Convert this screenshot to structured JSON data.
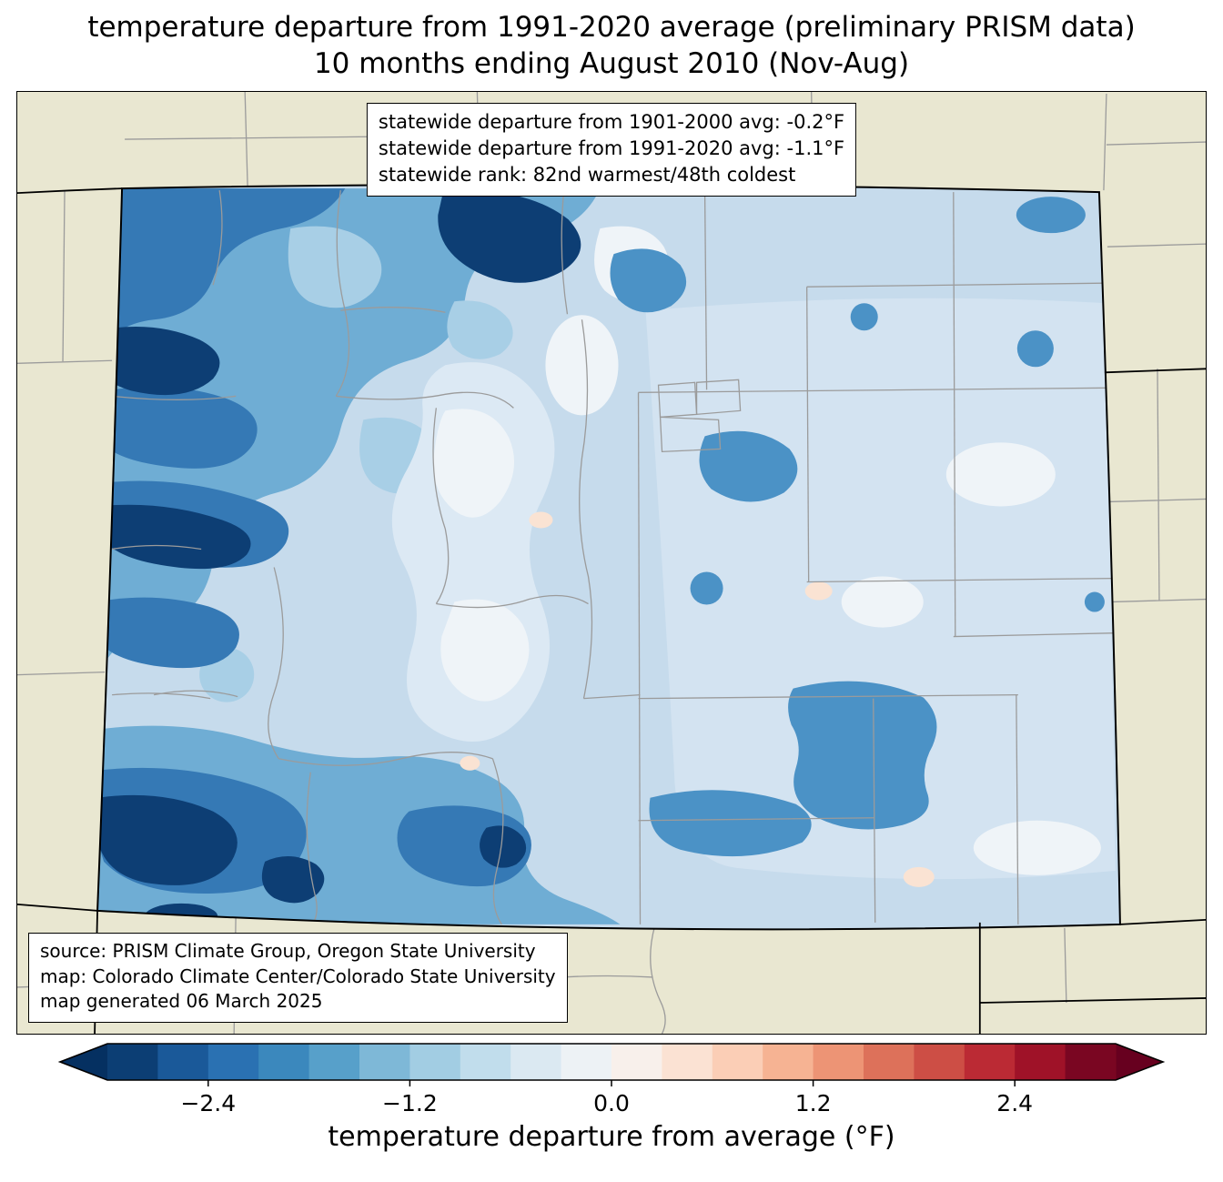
{
  "title": {
    "line1": "temperature departure from 1991-2020 average (preliminary PRISM data)",
    "line2": "10 months ending August 2010 (Nov-Aug)"
  },
  "stats_box": {
    "line1": "statewide departure from 1901-2000 avg: -0.2°F",
    "line2": "statewide departure from 1991-2020 avg: -1.1°F",
    "line3": "statewide rank: 82nd warmest/48th coldest"
  },
  "source_box": {
    "line1": "source: PRISM Climate Group, Oregon State University",
    "line2": "map: Colorado Climate Center/Colorado State University",
    "line3": "map generated 06 March 2025"
  },
  "colorbar": {
    "label": "temperature departure from average (°F)",
    "min": -3.0,
    "max": 3.0,
    "ticks": [
      {
        "value": -2.4,
        "label": "−2.4"
      },
      {
        "value": -1.2,
        "label": "−1.2"
      },
      {
        "value": 0.0,
        "label": "0.0"
      },
      {
        "value": 1.2,
        "label": "1.2"
      },
      {
        "value": 2.4,
        "label": "2.4"
      }
    ],
    "colors": [
      "#0c3e74",
      "#1a5999",
      "#2a71b2",
      "#3b88bd",
      "#57a0ca",
      "#7eb8d7",
      "#a2cde3",
      "#c1ddec",
      "#dbe9f2",
      "#edf2f5",
      "#f8f0eb",
      "#fbe2d3",
      "#fbceb6",
      "#f6b393",
      "#ed9475",
      "#dd715a",
      "#cd4e45",
      "#bb2a34",
      "#9f1228",
      "#7a0622"
    ],
    "under_color": "#053061",
    "over_color": "#67001f"
  },
  "map": {
    "region": "Colorado",
    "background_color": "#e9e7d1",
    "base_fill": "#c6dbec",
    "county_line_color": "#9b9b9b",
    "state_line_color": "#000000"
  },
  "chart_data": {
    "type": "heatmap",
    "title": "temperature departure from 1991-2020 average (preliminary PRISM data) — 10 months ending August 2010 (Nov-Aug)",
    "region": "Colorado",
    "statewide_departure_from_1901_2000_avg_F": -0.2,
    "statewide_departure_from_1991_2020_avg_F": -1.1,
    "statewide_rank": "82nd warmest/48th coldest",
    "colorbar_label": "temperature departure from average (°F)",
    "colorbar_ticks": [
      -2.4,
      -1.2,
      0.0,
      1.2,
      2.4
    ],
    "colorbar_range": [
      -3.0,
      3.0
    ],
    "dominant_pattern": "Negative (cool) departures statewide; strongest cooling of about -2 to -3°F over the western mountains, northwest and southwest; mildest departures (0 to -1°F) over the eastern plains with a few tiny near-zero/warm spots."
  }
}
